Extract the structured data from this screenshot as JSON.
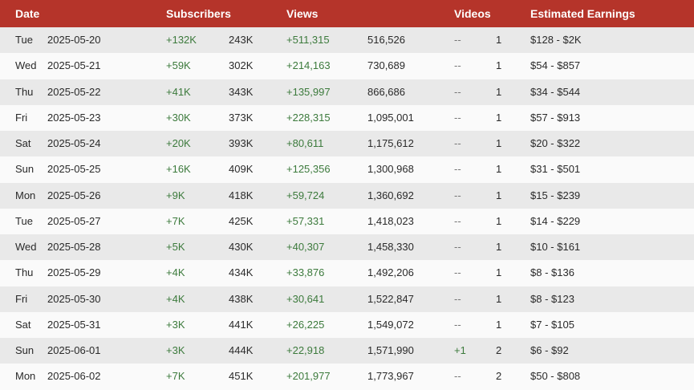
{
  "header": {
    "date": "Date",
    "subscribers": "Subscribers",
    "views": "Views",
    "videos": "Videos",
    "earnings": "Estimated Earnings"
  },
  "rows": [
    {
      "day": "Tue",
      "date": "2025-05-20",
      "sub_change": "+132K",
      "subs": "243K",
      "view_change": "+511,315",
      "views": "516,526",
      "video_change": "--",
      "videos": "1",
      "earnings": "$128 - $2K"
    },
    {
      "day": "Wed",
      "date": "2025-05-21",
      "sub_change": "+59K",
      "subs": "302K",
      "view_change": "+214,163",
      "views": "730,689",
      "video_change": "--",
      "videos": "1",
      "earnings": "$54 - $857"
    },
    {
      "day": "Thu",
      "date": "2025-05-22",
      "sub_change": "+41K",
      "subs": "343K",
      "view_change": "+135,997",
      "views": "866,686",
      "video_change": "--",
      "videos": "1",
      "earnings": "$34 - $544"
    },
    {
      "day": "Fri",
      "date": "2025-05-23",
      "sub_change": "+30K",
      "subs": "373K",
      "view_change": "+228,315",
      "views": "1,095,001",
      "video_change": "--",
      "videos": "1",
      "earnings": "$57 - $913"
    },
    {
      "day": "Sat",
      "date": "2025-05-24",
      "sub_change": "+20K",
      "subs": "393K",
      "view_change": "+80,611",
      "views": "1,175,612",
      "video_change": "--",
      "videos": "1",
      "earnings": "$20 - $322"
    },
    {
      "day": "Sun",
      "date": "2025-05-25",
      "sub_change": "+16K",
      "subs": "409K",
      "view_change": "+125,356",
      "views": "1,300,968",
      "video_change": "--",
      "videos": "1",
      "earnings": "$31 - $501"
    },
    {
      "day": "Mon",
      "date": "2025-05-26",
      "sub_change": "+9K",
      "subs": "418K",
      "view_change": "+59,724",
      "views": "1,360,692",
      "video_change": "--",
      "videos": "1",
      "earnings": "$15 - $239"
    },
    {
      "day": "Tue",
      "date": "2025-05-27",
      "sub_change": "+7K",
      "subs": "425K",
      "view_change": "+57,331",
      "views": "1,418,023",
      "video_change": "--",
      "videos": "1",
      "earnings": "$14 - $229"
    },
    {
      "day": "Wed",
      "date": "2025-05-28",
      "sub_change": "+5K",
      "subs": "430K",
      "view_change": "+40,307",
      "views": "1,458,330",
      "video_change": "--",
      "videos": "1",
      "earnings": "$10 - $161"
    },
    {
      "day": "Thu",
      "date": "2025-05-29",
      "sub_change": "+4K",
      "subs": "434K",
      "view_change": "+33,876",
      "views": "1,492,206",
      "video_change": "--",
      "videos": "1",
      "earnings": "$8 - $136"
    },
    {
      "day": "Fri",
      "date": "2025-05-30",
      "sub_change": "+4K",
      "subs": "438K",
      "view_change": "+30,641",
      "views": "1,522,847",
      "video_change": "--",
      "videos": "1",
      "earnings": "$8 - $123"
    },
    {
      "day": "Sat",
      "date": "2025-05-31",
      "sub_change": "+3K",
      "subs": "441K",
      "view_change": "+26,225",
      "views": "1,549,072",
      "video_change": "--",
      "videos": "1",
      "earnings": "$7 - $105"
    },
    {
      "day": "Sun",
      "date": "2025-06-01",
      "sub_change": "+3K",
      "subs": "444K",
      "view_change": "+22,918",
      "views": "1,571,990",
      "video_change": "+1",
      "videos": "2",
      "earnings": "$6 - $92"
    },
    {
      "day": "Mon",
      "date": "2025-06-02",
      "sub_change": "+7K",
      "subs": "451K",
      "view_change": "+201,977",
      "views": "1,773,967",
      "video_change": "--",
      "videos": "2",
      "earnings": "$50 - $808"
    }
  ],
  "colors": {
    "header_bg": "#b5342a",
    "header_text": "#ffffff",
    "positive_change": "#3c7a3c",
    "row_odd": "#e9e9e9",
    "row_even": "#fafafa"
  }
}
